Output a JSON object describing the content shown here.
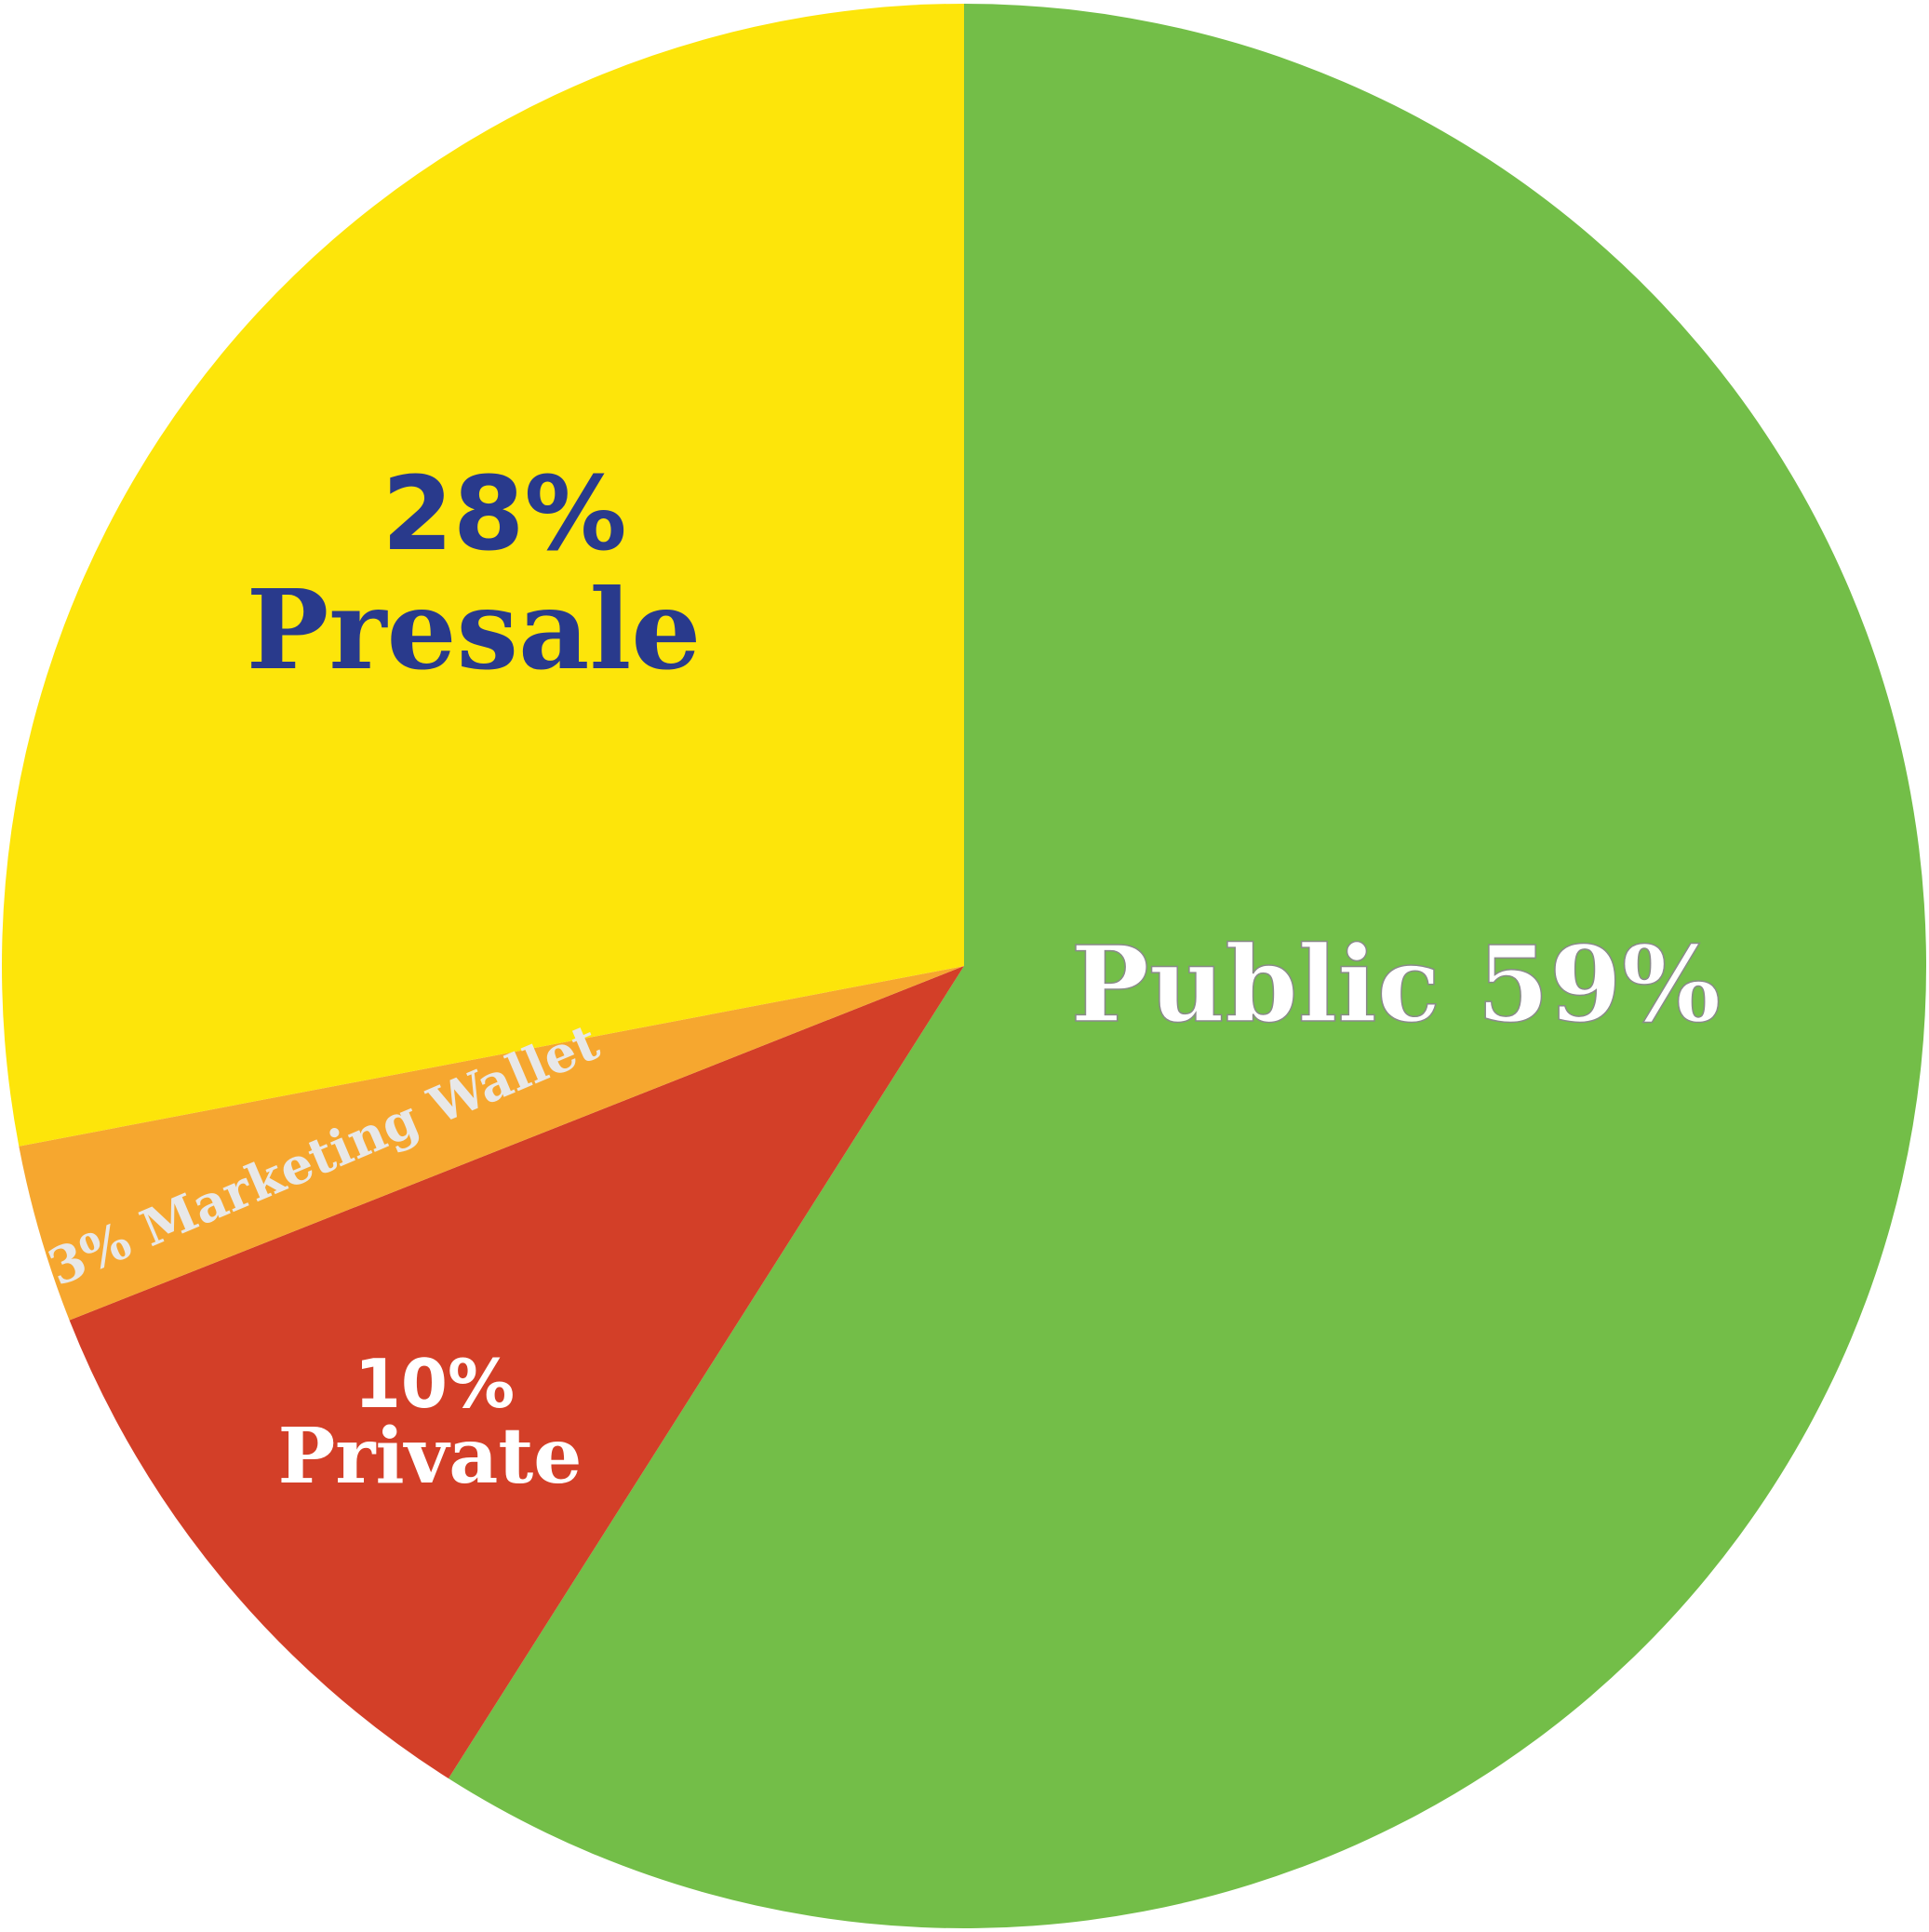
{
  "chart_data": {
    "type": "pie",
    "slices": [
      {
        "name": "Public",
        "value": 59,
        "color": "#73BE48",
        "label_lines": [
          "Public 59%"
        ],
        "label_color": "#FFFFFF"
      },
      {
        "name": "Private",
        "value": 10,
        "color": "#D33F28",
        "label_lines": [
          "10%",
          "Private"
        ],
        "label_color": "#FFFFFF"
      },
      {
        "name": "Marketing Wallet",
        "value": 3,
        "color": "#F6A72F",
        "label_lines": [
          "3% Marketing Wallet"
        ],
        "label_color": "#E8E8E8"
      },
      {
        "name": "Presale",
        "value": 28,
        "color": "#FDE50A",
        "label_lines": [
          "28%",
          "Presale"
        ],
        "label_color": "#293A8C"
      }
    ],
    "start_angle_deg": 0,
    "direction": "clockwise"
  }
}
